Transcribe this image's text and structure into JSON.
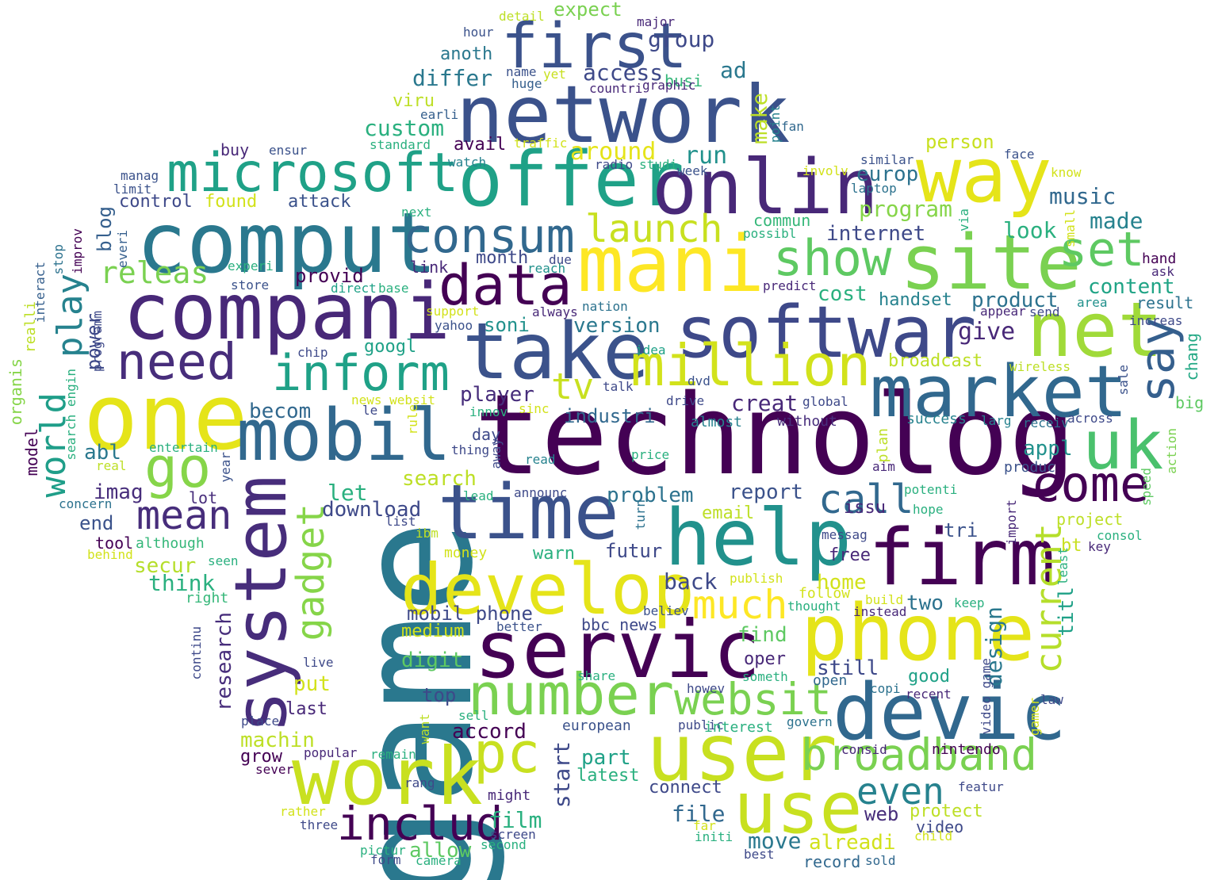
{
  "words": [
    {
      "text": "technolog",
      "color": "#440154"
    },
    {
      "text": "game",
      "color": "#2a788e"
    },
    {
      "text": "one",
      "color": "#e5e419"
    },
    {
      "text": "user",
      "color": "#c8e020"
    },
    {
      "text": "network",
      "color": "#3b528b"
    },
    {
      "text": "comput",
      "color": "#2a788e"
    },
    {
      "text": "compani",
      "color": "#482878"
    },
    {
      "text": "servic",
      "color": "#440154"
    },
    {
      "text": "phone",
      "color": "#e5e419"
    },
    {
      "text": "mobil",
      "color": "#31688e"
    },
    {
      "text": "take",
      "color": "#3b528b"
    },
    {
      "text": "system",
      "color": "#472d7b"
    },
    {
      "text": "time",
      "color": "#3b528b"
    },
    {
      "text": "help",
      "color": "#21918c"
    },
    {
      "text": "mani",
      "color": "#fde725"
    },
    {
      "text": "site",
      "color": "#7ad151"
    },
    {
      "text": "firm",
      "color": "#440154"
    },
    {
      "text": "work",
      "color": "#c8e020"
    },
    {
      "text": "devic",
      "color": "#31688e"
    },
    {
      "text": "offer",
      "color": "#1fa187"
    },
    {
      "text": "onlin",
      "color": "#482878"
    },
    {
      "text": "way",
      "color": "#e5e419"
    },
    {
      "text": "first",
      "color": "#3b528b"
    },
    {
      "text": "develop",
      "color": "#e5e419"
    },
    {
      "text": "softwar",
      "color": "#3e4989"
    },
    {
      "text": "net",
      "color": "#a0da39"
    },
    {
      "text": "market",
      "color": "#31688e"
    },
    {
      "text": "use",
      "color": "#c8e020"
    },
    {
      "text": "uk",
      "color": "#4ac16d"
    },
    {
      "text": "number",
      "color": "#7ad151"
    },
    {
      "text": "million",
      "color": "#d2e21b"
    },
    {
      "text": "microsoft",
      "color": "#1fa187"
    },
    {
      "text": "consum",
      "color": "#31688e"
    },
    {
      "text": "data",
      "color": "#440154"
    },
    {
      "text": "inform",
      "color": "#1fa187"
    },
    {
      "text": "need",
      "color": "#472d7b"
    },
    {
      "text": "go",
      "color": "#86d549"
    },
    {
      "text": "pc",
      "color": "#c8e020"
    },
    {
      "text": "show",
      "color": "#5ec962"
    },
    {
      "text": "set",
      "color": "#5ec962"
    },
    {
      "text": "say",
      "color": "#355f8d"
    },
    {
      "text": "come",
      "color": "#440154"
    },
    {
      "text": "broadband",
      "color": "#7ad151"
    },
    {
      "text": "websit",
      "color": "#7ad151"
    },
    {
      "text": "includ",
      "color": "#440154"
    },
    {
      "text": "mean",
      "color": "#472d7b"
    },
    {
      "text": "gadget",
      "color": "#86d549"
    },
    {
      "text": "call",
      "color": "#31688e"
    },
    {
      "text": "current",
      "color": "#b5de2b"
    },
    {
      "text": "launch",
      "color": "#c8e020"
    },
    {
      "text": "even",
      "color": "#26828e"
    },
    {
      "text": "much",
      "color": "#fde725"
    },
    {
      "text": "world",
      "color": "#1f9e89"
    },
    {
      "text": "play",
      "color": "#26828e"
    },
    {
      "text": "releas",
      "color": "#7ad151"
    },
    {
      "text": "tv",
      "color": "#c8e020"
    },
    {
      "text": "group",
      "color": "#3e4989"
    },
    {
      "text": "access",
      "color": "#3e4989"
    },
    {
      "text": "differ",
      "color": "#2a788e"
    },
    {
      "text": "ad",
      "color": "#2a788e"
    },
    {
      "text": "custom",
      "color": "#2ab07f"
    },
    {
      "text": "make",
      "color": "#bddf26"
    },
    {
      "text": "expect",
      "color": "#7ad151"
    },
    {
      "text": "anoth",
      "color": "#2a788e"
    },
    {
      "text": "busi",
      "color": "#35b779"
    },
    {
      "text": "viru",
      "color": "#bddf26"
    },
    {
      "text": "avail",
      "color": "#440154"
    },
    {
      "text": "around",
      "color": "#e5e419"
    },
    {
      "text": "run",
      "color": "#21918c"
    },
    {
      "text": "europ",
      "color": "#2c728e"
    },
    {
      "text": "person",
      "color": "#c8e020"
    },
    {
      "text": "music",
      "color": "#31688e"
    },
    {
      "text": "program",
      "color": "#86d549"
    },
    {
      "text": "internet",
      "color": "#3e4989"
    },
    {
      "text": "look",
      "color": "#2ab07f"
    },
    {
      "text": "made",
      "color": "#26828e"
    },
    {
      "text": "control",
      "color": "#3e4989"
    },
    {
      "text": "found",
      "color": "#d2e21b"
    },
    {
      "text": "attack",
      "color": "#3b528b"
    },
    {
      "text": "blog",
      "color": "#355f8d"
    },
    {
      "text": "commun",
      "color": "#35b779"
    },
    {
      "text": "provid",
      "color": "#440154"
    },
    {
      "text": "month",
      "color": "#3e4989"
    },
    {
      "text": "link",
      "color": "#482878"
    },
    {
      "text": "content",
      "color": "#20a486"
    },
    {
      "text": "product",
      "color": "#2c728e"
    },
    {
      "text": "cost",
      "color": "#2ab07f"
    },
    {
      "text": "handset",
      "color": "#26828e"
    },
    {
      "text": "result",
      "color": "#2c728e"
    },
    {
      "text": "power",
      "color": "#3e4989"
    },
    {
      "text": "soni",
      "color": "#21918c"
    },
    {
      "text": "version",
      "color": "#2a788e"
    },
    {
      "text": "give",
      "color": "#482878"
    },
    {
      "text": "broadcast",
      "color": "#bddf26"
    },
    {
      "text": "chang",
      "color": "#22a884"
    },
    {
      "text": "big",
      "color": "#5ec962"
    },
    {
      "text": "googl",
      "color": "#1fa187"
    },
    {
      "text": "player",
      "color": "#472d7b"
    },
    {
      "text": "industri",
      "color": "#31688e"
    },
    {
      "text": "creat",
      "color": "#482878"
    },
    {
      "text": "becom",
      "color": "#31688e"
    },
    {
      "text": "abl",
      "color": "#2a788e"
    },
    {
      "text": "day",
      "color": "#3e4989"
    },
    {
      "text": "search",
      "color": "#bddf26"
    },
    {
      "text": "appl",
      "color": "#21918c"
    },
    {
      "text": "imag",
      "color": "#472d7b"
    },
    {
      "text": "let",
      "color": "#2ab07f"
    },
    {
      "text": "lot",
      "color": "#472d7b"
    },
    {
      "text": "problem",
      "color": "#2c728e"
    },
    {
      "text": "report",
      "color": "#3b528b"
    },
    {
      "text": "download",
      "color": "#3e4989"
    },
    {
      "text": "issu",
      "color": "#482878"
    },
    {
      "text": "tri",
      "color": "#3b528b"
    },
    {
      "text": "email",
      "color": "#bddf26"
    },
    {
      "text": "end",
      "color": "#3b528b"
    },
    {
      "text": "tool",
      "color": "#440154"
    },
    {
      "text": "although",
      "color": "#35b779"
    },
    {
      "text": "futur",
      "color": "#3e4989"
    },
    {
      "text": "warn",
      "color": "#2ab07f"
    },
    {
      "text": "free",
      "color": "#482878"
    },
    {
      "text": "project",
      "color": "#bddf26"
    },
    {
      "text": "bt",
      "color": "#c8e020"
    },
    {
      "text": "secur",
      "color": "#b5de2b"
    },
    {
      "text": "think",
      "color": "#2ab07f"
    },
    {
      "text": "back",
      "color": "#3e4989"
    },
    {
      "text": "home",
      "color": "#d2e21b"
    },
    {
      "text": "titl",
      "color": "#1fa187"
    },
    {
      "text": "right",
      "color": "#35b779"
    },
    {
      "text": "design",
      "color": "#2a788e"
    },
    {
      "text": "two",
      "color": "#2c728e"
    },
    {
      "text": "follow",
      "color": "#d2e21b"
    },
    {
      "text": "research",
      "color": "#472d7b"
    },
    {
      "text": "mobil phone",
      "color": "#3e4989"
    },
    {
      "text": "medium",
      "color": "#d2e21b"
    },
    {
      "text": "bbc news",
      "color": "#3e4989"
    },
    {
      "text": "find",
      "color": "#5ec962"
    },
    {
      "text": "digit",
      "color": "#5ec962"
    },
    {
      "text": "oper",
      "color": "#482878"
    },
    {
      "text": "still",
      "color": "#3e4989"
    },
    {
      "text": "good",
      "color": "#1fa187"
    },
    {
      "text": "put",
      "color": "#d2e21b"
    },
    {
      "text": "top",
      "color": "#3e4989"
    },
    {
      "text": "open",
      "color": "#31688e"
    },
    {
      "text": "last",
      "color": "#482878"
    },
    {
      "text": "accord",
      "color": "#440154"
    },
    {
      "text": "machin",
      "color": "#bddf26"
    },
    {
      "text": "start",
      "color": "#3e4989"
    },
    {
      "text": "grow",
      "color": "#440154"
    },
    {
      "text": "part",
      "color": "#1fa187"
    },
    {
      "text": "latest",
      "color": "#2ab07f"
    },
    {
      "text": "connect",
      "color": "#3e4989"
    },
    {
      "text": "web",
      "color": "#472d7b"
    },
    {
      "text": "file",
      "color": "#31688e"
    },
    {
      "text": "film",
      "color": "#2ab07f"
    },
    {
      "text": "protect",
      "color": "#bddf26"
    },
    {
      "text": "video",
      "color": "#3e4989"
    },
    {
      "text": "move",
      "color": "#2a788e"
    },
    {
      "text": "alreadi",
      "color": "#d2e21b"
    },
    {
      "text": "allow",
      "color": "#5ec962"
    },
    {
      "text": "record",
      "color": "#31688e"
    },
    {
      "text": "sold",
      "color": "#31688e"
    },
    {
      "text": "detail",
      "color": "#bddf26"
    },
    {
      "text": "major",
      "color": "#482878"
    },
    {
      "text": "hour",
      "color": "#3b528b"
    },
    {
      "text": "name",
      "color": "#3b528b"
    },
    {
      "text": "yet",
      "color": "#c8e020"
    },
    {
      "text": "huge",
      "color": "#355f8d"
    },
    {
      "text": "countri",
      "color": "#482878"
    },
    {
      "text": "graphic",
      "color": "#482878"
    },
    {
      "text": "earli",
      "color": "#355f8d"
    },
    {
      "text": "point",
      "color": "#26828e"
    },
    {
      "text": "fan",
      "color": "#31688e"
    },
    {
      "text": "standard",
      "color": "#2ab07f"
    },
    {
      "text": "traffic",
      "color": "#d2e21b"
    },
    {
      "text": "buy",
      "color": "#482878"
    },
    {
      "text": "ensur",
      "color": "#3b528b"
    },
    {
      "text": "watch",
      "color": "#26828e"
    },
    {
      "text": "radio",
      "color": "#3e4989"
    },
    {
      "text": "studi",
      "color": "#2ab07f"
    },
    {
      "text": "week",
      "color": "#3b528b"
    },
    {
      "text": "similar",
      "color": "#3b528b"
    },
    {
      "text": "face",
      "color": "#3b528b"
    },
    {
      "text": "involv",
      "color": "#d2e21b"
    },
    {
      "text": "laptop",
      "color": "#2c728e"
    },
    {
      "text": "know",
      "color": "#d2e21b"
    },
    {
      "text": "manag",
      "color": "#3b528b"
    },
    {
      "text": "limit",
      "color": "#3b528b"
    },
    {
      "text": "next",
      "color": "#2ab07f"
    },
    {
      "text": "via",
      "color": "#2ab07f"
    },
    {
      "text": "small",
      "color": "#d2e21b"
    },
    {
      "text": "possibl",
      "color": "#2ab07f"
    },
    {
      "text": "improv",
      "color": "#440154"
    },
    {
      "text": "everi",
      "color": "#355f8d"
    },
    {
      "text": "stop",
      "color": "#2c728e"
    },
    {
      "text": "experi",
      "color": "#2ab07f"
    },
    {
      "text": "due",
      "color": "#3e4989"
    },
    {
      "text": "reach",
      "color": "#21918c"
    },
    {
      "text": "hand",
      "color": "#440154"
    },
    {
      "text": "ask",
      "color": "#482878"
    },
    {
      "text": "interact",
      "color": "#355f8d"
    },
    {
      "text": "store",
      "color": "#3b528b"
    },
    {
      "text": "direct",
      "color": "#1fa187"
    },
    {
      "text": "base",
      "color": "#2ab07f"
    },
    {
      "text": "predict",
      "color": "#482878"
    },
    {
      "text": "nation",
      "color": "#2c728e"
    },
    {
      "text": "always",
      "color": "#482878"
    },
    {
      "text": "appear",
      "color": "#482878"
    },
    {
      "text": "send",
      "color": "#3e4989"
    },
    {
      "text": "area",
      "color": "#21918c"
    },
    {
      "text": "increas",
      "color": "#3e4989"
    },
    {
      "text": "realli",
      "color": "#bddf26"
    },
    {
      "text": "programm",
      "color": "#3e4989"
    },
    {
      "text": "support",
      "color": "#d2e21b"
    },
    {
      "text": "yahoo",
      "color": "#3b528b"
    },
    {
      "text": "organis",
      "color": "#86d549"
    },
    {
      "text": "chip",
      "color": "#3e4989"
    },
    {
      "text": "idea",
      "color": "#1fa187"
    },
    {
      "text": "talk",
      "color": "#3e4989"
    },
    {
      "text": "dvd",
      "color": "#3b528b"
    },
    {
      "text": "wireless",
      "color": "#bddf26"
    },
    {
      "text": "sale",
      "color": "#3b528b"
    },
    {
      "text": "search engin",
      "color": "#2ab07f"
    },
    {
      "text": "news websit",
      "color": "#d2e21b"
    },
    {
      "text": "le",
      "color": "#3e4989"
    },
    {
      "text": "innov",
      "color": "#2ab07f"
    },
    {
      "text": "sinc",
      "color": "#d2e21b"
    },
    {
      "text": "drive",
      "color": "#3e4989"
    },
    {
      "text": "global",
      "color": "#3e4989"
    },
    {
      "text": "almost",
      "color": "#26828e"
    },
    {
      "text": "without",
      "color": "#472d7b"
    },
    {
      "text": "success",
      "color": "#26828e"
    },
    {
      "text": "larg",
      "color": "#26828e"
    },
    {
      "text": "receiv",
      "color": "#2c728e"
    },
    {
      "text": "across",
      "color": "#3e4989"
    },
    {
      "text": "model",
      "color": "#440154"
    },
    {
      "text": "rule",
      "color": "#d2e21b"
    },
    {
      "text": "entertain",
      "color": "#2ab07f"
    },
    {
      "text": "thing",
      "color": "#3e4989"
    },
    {
      "text": "away",
      "color": "#3e4989"
    },
    {
      "text": "plan",
      "color": "#bddf26"
    },
    {
      "text": "aim",
      "color": "#482878"
    },
    {
      "text": "action",
      "color": "#7ad151"
    },
    {
      "text": "real",
      "color": "#bddf26"
    },
    {
      "text": "year",
      "color": "#3b528b"
    },
    {
      "text": "price",
      "color": "#2ab07f"
    },
    {
      "text": "read",
      "color": "#26828e"
    },
    {
      "text": "produc",
      "color": "#3b528b"
    },
    {
      "text": "speed",
      "color": "#5ec962"
    },
    {
      "text": "concern",
      "color": "#2c728e"
    },
    {
      "text": "lead",
      "color": "#2ab07f"
    },
    {
      "text": "announc",
      "color": "#3e4989"
    },
    {
      "text": "turn",
      "color": "#2c728e"
    },
    {
      "text": "potenti",
      "color": "#2ab07f"
    },
    {
      "text": "hope",
      "color": "#2ab07f"
    },
    {
      "text": "import",
      "color": "#482878"
    },
    {
      "text": "list",
      "color": "#3e4989"
    },
    {
      "text": "ibm",
      "color": "#bddf26"
    },
    {
      "text": "messag",
      "color": "#3e4989"
    },
    {
      "text": "consol",
      "color": "#2ab07f"
    },
    {
      "text": "key",
      "color": "#482878"
    },
    {
      "text": "money",
      "color": "#d2e21b"
    },
    {
      "text": "behind",
      "color": "#d2e21b"
    },
    {
      "text": "seen",
      "color": "#2ab07f"
    },
    {
      "text": "least",
      "color": "#2ab07f"
    },
    {
      "text": "publish",
      "color": "#d2e21b"
    },
    {
      "text": "build",
      "color": "#d2e21b"
    },
    {
      "text": "keep",
      "color": "#2ab07f"
    },
    {
      "text": "believ",
      "color": "#3b528b"
    },
    {
      "text": "thought",
      "color": "#2ab07f"
    },
    {
      "text": "instead",
      "color": "#482878"
    },
    {
      "text": "better",
      "color": "#3b528b"
    },
    {
      "text": "continu",
      "color": "#3e4989"
    },
    {
      "text": "live",
      "color": "#3e4989"
    },
    {
      "text": "share",
      "color": "#2ab07f"
    },
    {
      "text": "someth",
      "color": "#2ab07f"
    },
    {
      "text": "howev",
      "color": "#3e4989"
    },
    {
      "text": "copi",
      "color": "#2c728e"
    },
    {
      "text": "video game",
      "color": "#3e4989"
    },
    {
      "text": "recent",
      "color": "#482878"
    },
    {
      "text": "law",
      "color": "#3e4989"
    },
    {
      "text": "gamer",
      "color": "#d2e21b"
    },
    {
      "text": "sell",
      "color": "#2ab07f"
    },
    {
      "text": "want",
      "color": "#bddf26"
    },
    {
      "text": "place",
      "color": "#3e4989"
    },
    {
      "text": "european",
      "color": "#3b528b"
    },
    {
      "text": "public",
      "color": "#3e4989"
    },
    {
      "text": "interest",
      "color": "#2ab07f"
    },
    {
      "text": "govern",
      "color": "#2c728e"
    },
    {
      "text": "consid",
      "color": "#482878"
    },
    {
      "text": "nintendo",
      "color": "#440154"
    },
    {
      "text": "popular",
      "color": "#482878"
    },
    {
      "text": "remain",
      "color": "#2ab07f"
    },
    {
      "text": "sever",
      "color": "#440154"
    },
    {
      "text": "rang",
      "color": "#3e4989"
    },
    {
      "text": "might",
      "color": "#482878"
    },
    {
      "text": "featur",
      "color": "#3e4989"
    },
    {
      "text": "rather",
      "color": "#d2e21b"
    },
    {
      "text": "three",
      "color": "#3e4989"
    },
    {
      "text": "far",
      "color": "#d2e21b"
    },
    {
      "text": "initi",
      "color": "#2ab07f"
    },
    {
      "text": "child",
      "color": "#d2e21b"
    },
    {
      "text": "screen",
      "color": "#3e4989"
    },
    {
      "text": "second",
      "color": "#2ab07f"
    },
    {
      "text": "pictur",
      "color": "#2ab07f"
    },
    {
      "text": "form",
      "color": "#3e4989"
    },
    {
      "text": "camera",
      "color": "#2ab07f"
    },
    {
      "text": "best",
      "color": "#3e4989"
    }
  ]
}
